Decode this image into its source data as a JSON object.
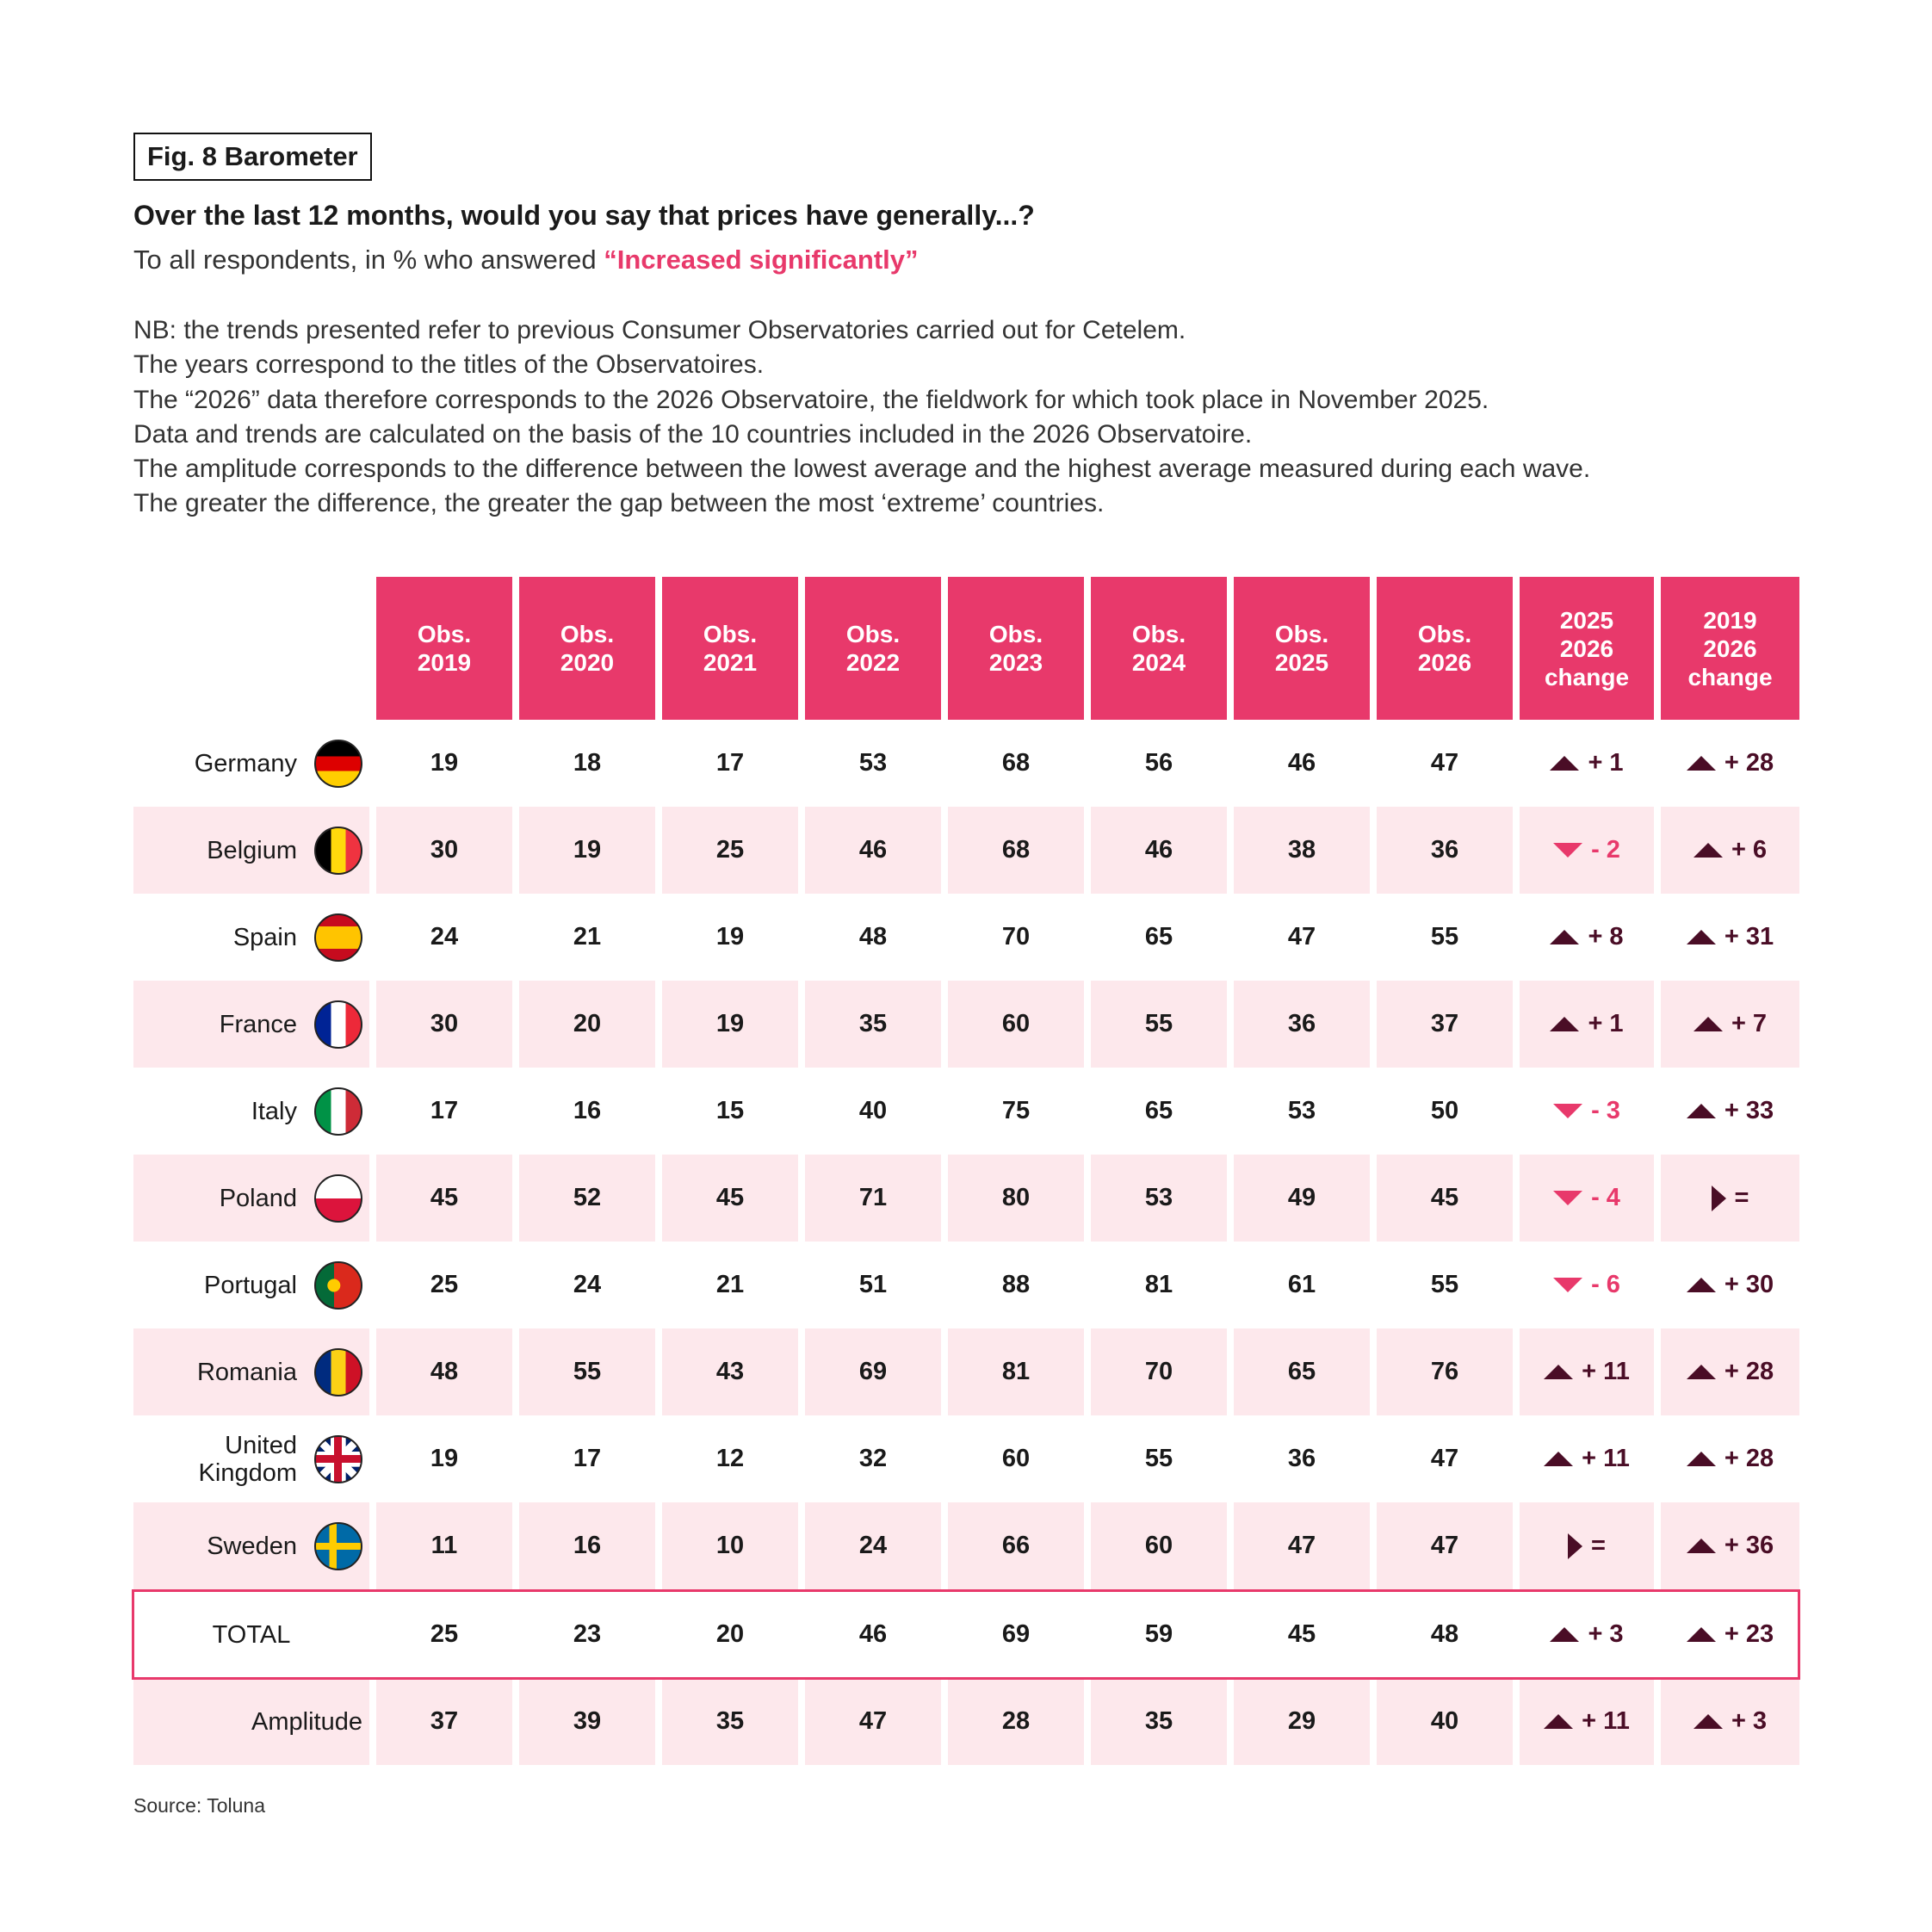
{
  "fig_label": "Fig. 8 Barometer",
  "title": "Over the last 12 months, would you say that prices have generally...?",
  "subtitle_prefix": "To all respondents, in % who answered ",
  "subtitle_highlight": "“Increased significantly”",
  "notes": [
    "NB: the trends presented refer to previous Consumer Observatories carried out for Cetelem.",
    "The years correspond to the titles of the Observatoires.",
    "The “2026” data therefore corresponds to the 2026 Observatoire, the fieldwork for which took place in November 2025.",
    "Data and trends are calculated on the basis of the 10 countries included in the 2026 Observatoire.",
    "The amplitude corresponds to the difference between the lowest average and the highest average measured during each wave.",
    "The greater the difference, the greater the gap between the most ‘extreme’ countries."
  ],
  "source": "Source: Toluna",
  "colors": {
    "accent": "#e8396b",
    "shade": "#fde8ec",
    "up": "#4a0d26",
    "down": "#e8396b"
  },
  "chart_data": {
    "type": "table",
    "title": "Fig. 8 Barometer",
    "columns": [
      "Obs.\n2019",
      "Obs.\n2020",
      "Obs.\n2021",
      "Obs.\n2022",
      "Obs.\n2023",
      "Obs.\n2024",
      "Obs.\n2025",
      "Obs.\n2026",
      "2025\n2026\nchange",
      "2019\n2026\nchange"
    ],
    "rows": [
      {
        "label": "Germany",
        "flag": "de",
        "values": [
          "19",
          "18",
          "17",
          "53",
          "68",
          "56",
          "46",
          "47"
        ],
        "changes": [
          {
            "dir": "up",
            "text": "+ 1"
          },
          {
            "dir": "up",
            "text": "+ 28"
          }
        ]
      },
      {
        "label": "Belgium",
        "flag": "be",
        "values": [
          "30",
          "19",
          "25",
          "46",
          "68",
          "46",
          "38",
          "36"
        ],
        "changes": [
          {
            "dir": "down",
            "text": "- 2"
          },
          {
            "dir": "up",
            "text": "+ 6"
          }
        ]
      },
      {
        "label": "Spain",
        "flag": "es",
        "values": [
          "24",
          "21",
          "19",
          "48",
          "70",
          "65",
          "47",
          "55"
        ],
        "changes": [
          {
            "dir": "up",
            "text": "+ 8"
          },
          {
            "dir": "up",
            "text": "+ 31"
          }
        ]
      },
      {
        "label": "France",
        "flag": "fr",
        "values": [
          "30",
          "20",
          "19",
          "35",
          "60",
          "55",
          "36",
          "37"
        ],
        "changes": [
          {
            "dir": "up",
            "text": "+ 1"
          },
          {
            "dir": "up",
            "text": "+ 7"
          }
        ]
      },
      {
        "label": "Italy",
        "flag": "it",
        "values": [
          "17",
          "16",
          "15",
          "40",
          "75",
          "65",
          "53",
          "50"
        ],
        "changes": [
          {
            "dir": "down",
            "text": "- 3"
          },
          {
            "dir": "up",
            "text": "+ 33"
          }
        ]
      },
      {
        "label": "Poland",
        "flag": "pl",
        "values": [
          "45",
          "52",
          "45",
          "71",
          "80",
          "53",
          "49",
          "45"
        ],
        "changes": [
          {
            "dir": "down",
            "text": "- 4"
          },
          {
            "dir": "eq",
            "text": "="
          }
        ]
      },
      {
        "label": "Portugal",
        "flag": "pt",
        "values": [
          "25",
          "24",
          "21",
          "51",
          "88",
          "81",
          "61",
          "55"
        ],
        "changes": [
          {
            "dir": "down",
            "text": "- 6"
          },
          {
            "dir": "up",
            "text": "+ 30"
          }
        ]
      },
      {
        "label": "Romania",
        "flag": "ro",
        "values": [
          "48",
          "55",
          "43",
          "69",
          "81",
          "70",
          "65",
          "76"
        ],
        "changes": [
          {
            "dir": "up",
            "text": "+ 11"
          },
          {
            "dir": "up",
            "text": "+ 28"
          }
        ]
      },
      {
        "label": "United\nKingdom",
        "flag": "gb",
        "values": [
          "19",
          "17",
          "12",
          "32",
          "60",
          "55",
          "36",
          "47"
        ],
        "changes": [
          {
            "dir": "up",
            "text": "+ 11"
          },
          {
            "dir": "up",
            "text": "+ 28"
          }
        ]
      },
      {
        "label": "Sweden",
        "flag": "se",
        "values": [
          "11",
          "16",
          "10",
          "24",
          "66",
          "60",
          "47",
          "47"
        ],
        "changes": [
          {
            "dir": "eq",
            "text": "="
          },
          {
            "dir": "up",
            "text": "+ 36"
          }
        ]
      },
      {
        "label": "TOTAL",
        "flag": "",
        "values": [
          "25",
          "23",
          "20",
          "46",
          "69",
          "59",
          "45",
          "48"
        ],
        "changes": [
          {
            "dir": "up",
            "text": "+ 3"
          },
          {
            "dir": "up",
            "text": "+ 23"
          }
        ]
      },
      {
        "label": "Amplitude",
        "flag": "",
        "values": [
          "37",
          "39",
          "35",
          "47",
          "28",
          "35",
          "29",
          "40"
        ],
        "changes": [
          {
            "dir": "up",
            "text": "+ 11"
          },
          {
            "dir": "up",
            "text": "+ 3"
          }
        ]
      }
    ]
  }
}
